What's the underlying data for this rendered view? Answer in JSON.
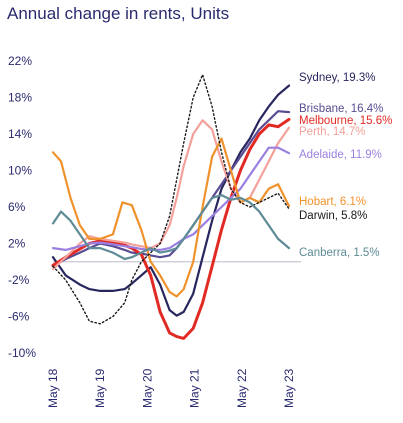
{
  "chart_data": {
    "type": "line",
    "title": "Annual change in rents, Units",
    "xlabel": "",
    "ylabel": "",
    "ylim": [
      -10,
      22
    ],
    "yticks": [
      22,
      18,
      14,
      10,
      6,
      2,
      -2,
      -6,
      -10
    ],
    "ytick_labels": [
      "22%",
      "18%",
      "14%",
      "10%",
      "6%",
      "2%",
      "-2%",
      "-6%",
      "-10%"
    ],
    "x_range": [
      2018.33,
      2023.33
    ],
    "xticks": [
      2018.33,
      2019.33,
      2020.33,
      2021.33,
      2022.33,
      2023.33
    ],
    "xtick_labels": [
      "May 18",
      "May 19",
      "May 20",
      "May 21",
      "May 22",
      "May 23"
    ],
    "zero_line": true,
    "series": [
      {
        "name": "Sydney",
        "label": "Sydney, 19.3%",
        "color": "#27265f",
        "style": "solid",
        "x": [
          2018.33,
          2018.6,
          2018.9,
          2019.1,
          2019.33,
          2019.6,
          2019.85,
          2020.0,
          2020.2,
          2020.4,
          2020.6,
          2020.8,
          2020.95,
          2021.1,
          2021.3,
          2021.5,
          2021.7,
          2021.9,
          2022.1,
          2022.3,
          2022.5,
          2022.7,
          2022.9,
          2023.1,
          2023.33
        ],
        "y": [
          0.5,
          -1.5,
          -2.5,
          -3,
          -3.2,
          -3.2,
          -3,
          -2.4,
          -1.5,
          -0.6,
          -2.5,
          -5.3,
          -5.9,
          -5.5,
          -3.5,
          0.5,
          4.5,
          8,
          10,
          12,
          13.5,
          15.5,
          17,
          18.3,
          19.3
        ]
      },
      {
        "name": "Brisbane",
        "label": "Brisbane, 16.4%",
        "color": "#5a4c92",
        "style": "solid",
        "x": [
          2018.33,
          2018.6,
          2018.9,
          2019.1,
          2019.33,
          2019.6,
          2019.85,
          2020.0,
          2020.2,
          2020.4,
          2020.6,
          2020.8,
          2020.95,
          2021.1,
          2021.3,
          2021.5,
          2021.7,
          2021.9,
          2022.1,
          2022.3,
          2022.5,
          2022.7,
          2022.9,
          2023.1,
          2023.33
        ],
        "y": [
          -0.5,
          0.3,
          1.0,
          1.5,
          2.0,
          1.7,
          1.3,
          1.0,
          0.9,
          0.7,
          0.5,
          0.7,
          1.5,
          2.5,
          4,
          5.5,
          7,
          8.5,
          10,
          11.5,
          13,
          14.5,
          15.5,
          16.5,
          16.4
        ]
      },
      {
        "name": "Melbourne",
        "label": "Melbourne, 15.6%",
        "color": "#e22a24",
        "style": "solid",
        "x": [
          2018.33,
          2018.6,
          2018.9,
          2019.1,
          2019.33,
          2019.6,
          2019.85,
          2020.0,
          2020.2,
          2020.4,
          2020.6,
          2020.8,
          2020.95,
          2021.1,
          2021.3,
          2021.5,
          2021.7,
          2021.9,
          2022.1,
          2022.3,
          2022.5,
          2022.7,
          2022.9,
          2023.1,
          2023.33
        ],
        "y": [
          -0.4,
          0.5,
          1.4,
          2.0,
          2.3,
          2.1,
          1.8,
          1.5,
          0.8,
          -1.5,
          -5.5,
          -7.8,
          -8.2,
          -8.4,
          -7.3,
          -4.5,
          -0.5,
          3.5,
          7,
          10,
          12.3,
          14,
          15,
          14.8,
          15.6
        ]
      },
      {
        "name": "Perth",
        "label": "Perth, 14.7%",
        "color": "#f3a19a",
        "style": "solid",
        "x": [
          2018.33,
          2018.6,
          2018.9,
          2019.1,
          2019.33,
          2019.6,
          2019.85,
          2020.0,
          2020.2,
          2020.4,
          2020.6,
          2020.8,
          2020.95,
          2021.1,
          2021.3,
          2021.5,
          2021.7,
          2021.9,
          2022.1,
          2022.3,
          2022.5,
          2022.7,
          2022.9,
          2023.1,
          2023.33
        ],
        "y": [
          -0.8,
          0.5,
          2.0,
          2.8,
          2.5,
          2.3,
          2.1,
          1.9,
          1.7,
          1.5,
          2.0,
          4.0,
          7.0,
          10.5,
          14,
          15.5,
          14.5,
          11,
          8,
          6.5,
          7.0,
          9,
          11,
          13,
          14.7
        ]
      },
      {
        "name": "Adelaide",
        "label": "Adelaide, 11.9%",
        "color": "#9b7fe0",
        "style": "solid",
        "x": [
          2018.33,
          2018.6,
          2018.9,
          2019.1,
          2019.33,
          2019.6,
          2019.85,
          2020.0,
          2020.2,
          2020.4,
          2020.6,
          2020.8,
          2020.95,
          2021.1,
          2021.3,
          2021.5,
          2021.7,
          2021.9,
          2022.1,
          2022.3,
          2022.5,
          2022.7,
          2022.9,
          2023.1,
          2023.33
        ],
        "y": [
          1.5,
          1.3,
          1.7,
          2.0,
          2.1,
          1.9,
          1.7,
          1.6,
          1.4,
          1.3,
          1.3,
          1.5,
          2.0,
          2.5,
          3,
          4,
          5,
          6,
          7,
          8,
          9.5,
          11,
          12.5,
          12.5,
          11.9
        ]
      },
      {
        "name": "Hobart",
        "label": "Hobart, 6.1%",
        "color": "#f0922c",
        "style": "solid",
        "x": [
          2018.33,
          2018.5,
          2018.7,
          2018.9,
          2019.1,
          2019.33,
          2019.6,
          2019.8,
          2020.0,
          2020.2,
          2020.4,
          2020.6,
          2020.8,
          2020.95,
          2021.1,
          2021.3,
          2021.5,
          2021.7,
          2021.9,
          2022.1,
          2022.3,
          2022.5,
          2022.7,
          2022.9,
          2023.1,
          2023.33
        ],
        "y": [
          12,
          11,
          7,
          4,
          2.5,
          2.5,
          3,
          6.5,
          6.2,
          3.5,
          0,
          -1.5,
          -3.3,
          -3.8,
          -3,
          0,
          6,
          11.5,
          13.5,
          10,
          6.5,
          7,
          6.5,
          8,
          8.5,
          6.1
        ]
      },
      {
        "name": "Darwin",
        "label": "Darwin, 5.8%",
        "color": "#1a1a1a",
        "style": "dotted",
        "x": [
          2018.33,
          2018.6,
          2018.9,
          2019.1,
          2019.33,
          2019.6,
          2019.85,
          2020.0,
          2020.2,
          2020.4,
          2020.6,
          2020.8,
          2020.95,
          2021.1,
          2021.3,
          2021.5,
          2021.7,
          2021.9,
          2022.1,
          2022.3,
          2022.5,
          2022.7,
          2022.9,
          2023.1,
          2023.33
        ],
        "y": [
          -0.5,
          -2,
          -4.5,
          -6.5,
          -6.8,
          -6,
          -4.5,
          -2,
          0,
          1,
          2,
          5,
          9,
          13,
          18,
          20.5,
          17,
          12,
          8,
          6.5,
          6,
          6.5,
          7,
          7.5,
          5.8
        ]
      },
      {
        "name": "Canberra",
        "label": "Canberra, 1.5%",
        "color": "#5e8b96",
        "style": "solid",
        "x": [
          2018.33,
          2018.5,
          2018.7,
          2018.9,
          2019.1,
          2019.33,
          2019.6,
          2019.85,
          2020.0,
          2020.2,
          2020.4,
          2020.6,
          2020.8,
          2020.95,
          2021.1,
          2021.3,
          2021.5,
          2021.7,
          2021.9,
          2022.1,
          2022.3,
          2022.5,
          2022.7,
          2022.9,
          2023.1,
          2023.33
        ],
        "y": [
          4.2,
          5.5,
          4.5,
          3,
          1.5,
          1.5,
          1.0,
          0.3,
          0.5,
          1.0,
          1.5,
          1.0,
          1.2,
          1.5,
          2.5,
          4,
          5.5,
          7,
          7.3,
          6.8,
          7.0,
          6.5,
          5.5,
          4,
          2.5,
          1.5
        ]
      }
    ]
  }
}
